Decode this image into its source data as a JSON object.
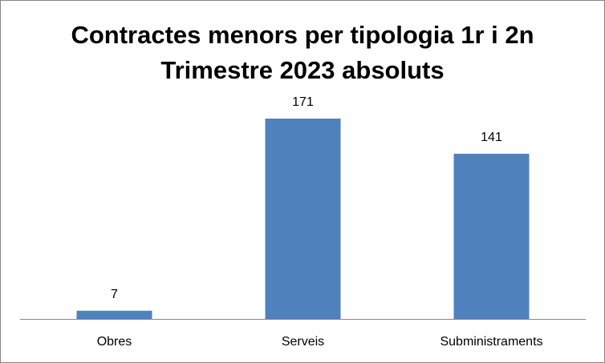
{
  "chart_data": {
    "type": "bar",
    "title": "Contractes menors per tipologia 1r i 2n Trimestre 2023 absoluts",
    "categories": [
      "Obres",
      "Serveis",
      "Subministraments"
    ],
    "values": [
      7,
      171,
      141
    ],
    "color": "#4f81bd"
  }
}
